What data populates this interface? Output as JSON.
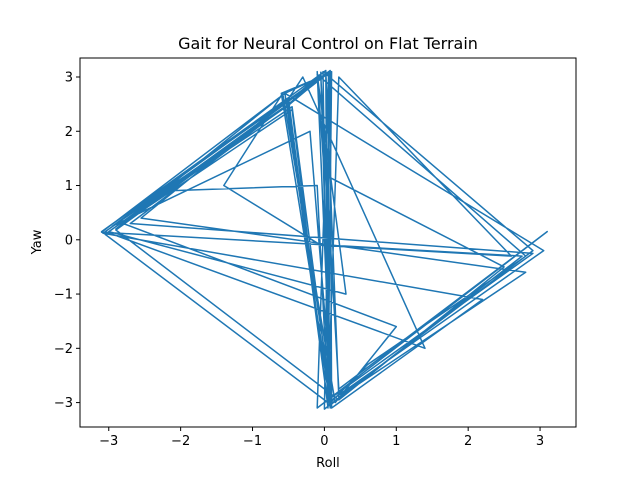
{
  "chart_data": {
    "type": "line",
    "title": "Gait for Neural Control on Flat Terrain",
    "xlabel": "Roll",
    "ylabel": "Yaw",
    "xlim": [
      -3.4,
      3.5
    ],
    "ylim": [
      -3.45,
      3.35
    ],
    "x_ticks": [
      -3,
      -2,
      -1,
      0,
      1,
      2,
      3
    ],
    "y_ticks": [
      -3,
      -2,
      -1,
      0,
      1,
      2,
      3
    ],
    "grid": false,
    "legend": "none",
    "series": [
      {
        "color": "#1f77b4",
        "x": [
          -0.05,
          0.08,
          0.02,
          -0.52,
          -3.1,
          -0.05,
          -0.6,
          0.1,
          -0.05,
          -0.5,
          -3.05,
          0.05,
          -0.02,
          2.9,
          2.75,
          0.6,
          0.05,
          -0.5,
          -2.95,
          -0.2,
          0.1,
          -0.55,
          3.05,
          0.05,
          0.06,
          -0.48,
          -3.0,
          0.3,
          -0.1,
          2.8,
          0.3,
          0.08,
          -0.55,
          -2.9,
          0.06,
          -0.1,
          3.1,
          2.7,
          0.2,
          -0.05,
          -0.5,
          -3.05,
          1.4,
          -0.3,
          -0.5,
          -2.55,
          2.8,
          0.2,
          0.02,
          0.05,
          -0.45,
          -2.8,
          1.0,
          0.15,
          -0.58,
          -1.4,
          -0.05,
          2.6,
          0.2,
          0.05,
          -0.52,
          -3.08,
          2.2,
          0.1,
          0.08,
          -0.5,
          -2.9,
          0.2,
          2.5,
          0.0,
          -0.1,
          0.1,
          -0.45,
          -2.2,
          -0.1,
          0.05,
          0.1,
          -0.55,
          -3.1,
          2.75,
          0.0,
          0.08,
          -0.5,
          -2.7,
          2.9,
          0.0
        ],
        "y": [
          3.1,
          -3.1,
          3.12,
          2.6,
          0.15,
          3.0,
          2.7,
          -3.05,
          3.05,
          2.55,
          0.1,
          -3.0,
          3.1,
          -0.2,
          -0.35,
          -2.3,
          -3.05,
          2.6,
          0.25,
          2.0,
          -2.9,
          2.7,
          -0.2,
          -3.0,
          3.1,
          2.5,
          0.15,
          -1.0,
          3.05,
          -0.3,
          -2.8,
          -3.05,
          2.7,
          0.2,
          3.1,
          -3.1,
          0.15,
          -0.25,
          -2.75,
          3.0,
          2.5,
          0.15,
          -2.0,
          3.0,
          2.6,
          0.4,
          -0.6,
          -2.9,
          3.12,
          -3.1,
          2.4,
          0.3,
          -1.6,
          -3.0,
          2.7,
          1.0,
          -0.1,
          -0.3,
          3.0,
          -3.05,
          2.6,
          0.12,
          -1.1,
          -3.1,
          3.1,
          2.5,
          0.18,
          -2.95,
          -0.5,
          1.2,
          3.1,
          -3.1,
          2.45,
          0.9,
          1.0,
          -3.0,
          3.1,
          2.7,
          0.14,
          -0.3,
          -3.12,
          3.12,
          2.5,
          0.3,
          -0.25,
          -3.0
        ]
      }
    ]
  }
}
